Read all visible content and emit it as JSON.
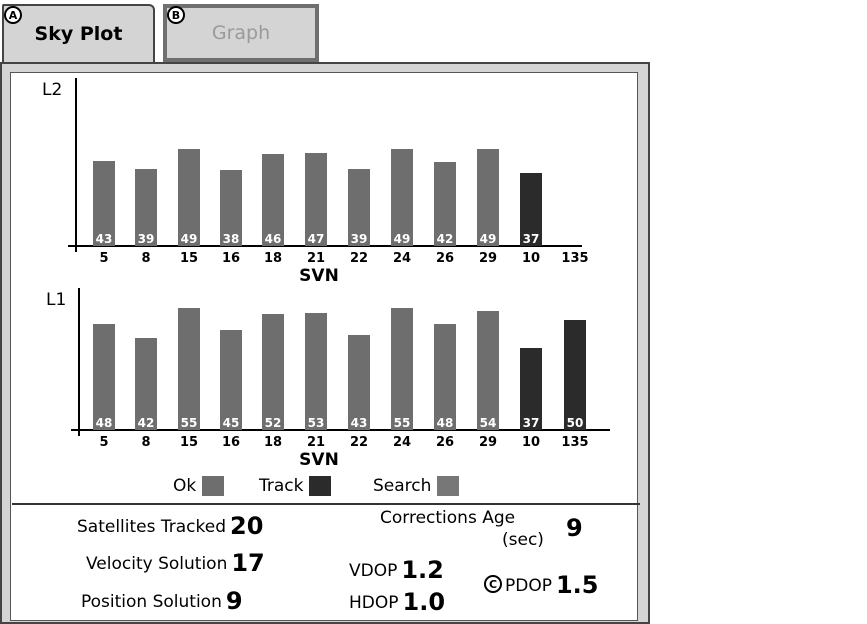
{
  "tabs": [
    {
      "label": "Sky Plot",
      "callout": "A",
      "active": true
    },
    {
      "label": "Graph",
      "callout": "B",
      "active": false
    }
  ],
  "colors": {
    "ok": "#6e6e6e",
    "track": "#2b2b2b",
    "search": "#777777"
  },
  "legend": {
    "ok": "Ok",
    "track": "Track",
    "search": "Search"
  },
  "chart_data": [
    {
      "type": "bar",
      "title": "L2",
      "xlabel": "SVN",
      "categories": [
        "5",
        "8",
        "15",
        "16",
        "18",
        "21",
        "22",
        "24",
        "26",
        "29",
        "10",
        "135"
      ],
      "values": [
        43,
        39,
        49,
        38,
        46,
        47,
        39,
        49,
        42,
        49,
        37,
        null
      ],
      "labels": [
        "43",
        "39",
        "49",
        "38",
        "46",
        "47",
        "39",
        "49",
        "42",
        "49",
        "37",
        ""
      ],
      "status": [
        "ok",
        "ok",
        "ok",
        "ok",
        "ok",
        "ok",
        "ok",
        "ok",
        "ok",
        "ok",
        "track",
        "none"
      ],
      "bar_heights": [
        85,
        77,
        97,
        76,
        92,
        93,
        77,
        97,
        84,
        97,
        73,
        0
      ],
      "ylim": [
        0,
        110
      ]
    },
    {
      "type": "bar",
      "title": "L1",
      "xlabel": "SVN",
      "categories": [
        "5",
        "8",
        "15",
        "16",
        "18",
        "21",
        "22",
        "24",
        "26",
        "29",
        "10",
        "135"
      ],
      "values": [
        48,
        42,
        55,
        45,
        52,
        53,
        43,
        55,
        48,
        54,
        37,
        50
      ],
      "labels": [
        "48",
        "42",
        "55",
        "45",
        "52",
        "53",
        "43",
        "55",
        "48",
        "54",
        "37",
        "50"
      ],
      "status": [
        "ok",
        "ok",
        "ok",
        "ok",
        "ok",
        "ok",
        "ok",
        "ok",
        "ok",
        "ok",
        "track",
        "track"
      ],
      "bar_heights": [
        106,
        92,
        122,
        100,
        116,
        117,
        95,
        122,
        106,
        119,
        82,
        110
      ],
      "ylim": [
        0,
        140
      ]
    }
  ],
  "stats": {
    "satellites_tracked_label": "Satellites Tracked",
    "satellites_tracked": "20",
    "velocity_solution_label": "Velocity Solution",
    "velocity_solution": "17",
    "position_solution_label": "Position Solution",
    "position_solution": "9",
    "corrections_age_label_1": "Corrections Age",
    "corrections_age_label_2": "(sec)",
    "corrections_age": "9",
    "vdop_label": "VDOP",
    "vdop": "1.2",
    "hdop_label": "HDOP",
    "hdop": "1.0",
    "pdop_callout": "C",
    "pdop_label": "PDOP",
    "pdop": "1.5"
  }
}
